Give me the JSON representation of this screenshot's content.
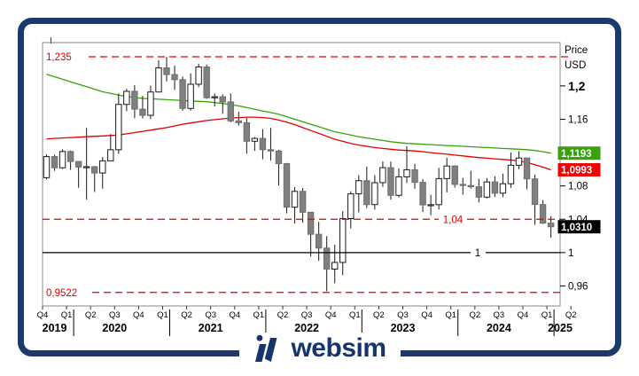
{
  "brand": {
    "name": "websim",
    "color": "#16356e"
  },
  "axis_y": {
    "title_line1": "Price",
    "title_line2": "USD",
    "ticks": [
      {
        "label": "1,2",
        "value": 1.2,
        "bold": true
      },
      {
        "label": "1,16",
        "value": 1.16,
        "bold": false
      },
      {
        "label": "1,08",
        "value": 1.08,
        "bold": false
      },
      {
        "label": "1,04",
        "value": 1.04,
        "bold": false
      },
      {
        "label": "1",
        "value": 1.0,
        "bold": false
      },
      {
        "label": "0,96",
        "value": 0.96,
        "bold": false
      }
    ],
    "badges": [
      {
        "label": "1,1193",
        "value": 1.1193,
        "bg": "#3aa10b",
        "fg": "#ffffff"
      },
      {
        "label": "1,0993",
        "value": 1.0993,
        "bg": "#f00000",
        "fg": "#ffffff"
      },
      {
        "label": "1,0310",
        "value": 1.031,
        "bg": "#000000",
        "fg": "#ffffff"
      }
    ]
  },
  "axis_x": {
    "quarters": [
      "Q4",
      "Q1",
      "Q2",
      "Q3",
      "Q4",
      "Q1",
      "Q2",
      "Q3",
      "Q4",
      "Q1",
      "Q2",
      "Q3",
      "Q4",
      "Q1",
      "Q2",
      "Q3",
      "Q4",
      "Q1",
      "Q2",
      "Q3",
      "Q4",
      "Q1",
      "Q2"
    ],
    "years": [
      {
        "label": "2019",
        "quarters": 1
      },
      {
        "label": "2020",
        "quarters": 4
      },
      {
        "label": "2021",
        "quarters": 4
      },
      {
        "label": "2022",
        "quarters": 4
      },
      {
        "label": "2023",
        "quarters": 4
      },
      {
        "label": "2024",
        "quarters": 4
      },
      {
        "label": "2025",
        "quarters": 2
      }
    ]
  },
  "levels": [
    {
      "label": "1,235",
      "value": 1.235,
      "style": "dashed",
      "color": "#e10000",
      "placement": "left"
    },
    {
      "label": "1,04",
      "value": 1.04,
      "style": "dashed",
      "color": "#e10000",
      "placement": "inline"
    },
    {
      "label": "1",
      "value": 1.0,
      "style": "solid",
      "color": "#000000",
      "placement": "inline"
    },
    {
      "label": "0,9522",
      "value": 0.9522,
      "style": "dashed",
      "color": "#e10000",
      "placement": "left"
    }
  ],
  "chart_data": {
    "type": "candlestick",
    "instrument_axis_title": "Price USD",
    "interval": "monthly",
    "start": "2019-10",
    "end": "2025-01",
    "ylim": [
      0.936,
      1.252
    ],
    "up_color": "#ffffff",
    "down_color": "#808080",
    "candles_ohlc": [
      [
        1.0899,
        1.1179,
        1.0879,
        1.1152
      ],
      [
        1.1152,
        1.1175,
        1.0981,
        1.1018
      ],
      [
        1.1018,
        1.1239,
        1.1003,
        1.1213
      ],
      [
        1.1213,
        1.1225,
        1.0992,
        1.1093
      ],
      [
        1.1093,
        1.1096,
        1.0778,
        1.1026
      ],
      [
        1.1026,
        1.1495,
        1.0636,
        1.1031
      ],
      [
        1.1031,
        1.1039,
        1.0727,
        1.0955
      ],
      [
        1.0955,
        1.1145,
        1.0767,
        1.1101
      ],
      [
        1.1101,
        1.1422,
        1.1101,
        1.1234
      ],
      [
        1.1234,
        1.1909,
        1.1185,
        1.1778
      ],
      [
        1.1778,
        1.1966,
        1.1696,
        1.1935
      ],
      [
        1.1935,
        1.2011,
        1.1612,
        1.1721
      ],
      [
        1.1721,
        1.1881,
        1.1612,
        1.1647
      ],
      [
        1.1647,
        1.2003,
        1.1603,
        1.1927
      ],
      [
        1.1927,
        1.231,
        1.1923,
        1.2216
      ],
      [
        1.2216,
        1.2349,
        1.2054,
        1.2136
      ],
      [
        1.2136,
        1.2243,
        1.1952,
        1.2075
      ],
      [
        1.2075,
        1.2113,
        1.1704,
        1.173
      ],
      [
        1.173,
        1.215,
        1.1704,
        1.202
      ],
      [
        1.202,
        1.2266,
        1.1986,
        1.2227
      ],
      [
        1.2227,
        1.2254,
        1.1845,
        1.1858
      ],
      [
        1.1858,
        1.1909,
        1.1752,
        1.187
      ],
      [
        1.187,
        1.1899,
        1.1664,
        1.1808
      ],
      [
        1.1808,
        1.1909,
        1.1563,
        1.158
      ],
      [
        1.158,
        1.1692,
        1.1524,
        1.1558
      ],
      [
        1.1558,
        1.1616,
        1.1186,
        1.1336
      ],
      [
        1.1336,
        1.1387,
        1.1221,
        1.137
      ],
      [
        1.137,
        1.1483,
        1.1121,
        1.1235
      ],
      [
        1.1235,
        1.1495,
        1.1106,
        1.1219
      ],
      [
        1.1219,
        1.1233,
        1.0806,
        1.1067
      ],
      [
        1.1067,
        1.1076,
        1.0471,
        1.0545
      ],
      [
        1.0545,
        1.0787,
        1.0349,
        1.0735
      ],
      [
        1.0735,
        1.0774,
        1.0359,
        1.0484
      ],
      [
        1.0484,
        1.0487,
        0.9952,
        1.022
      ],
      [
        1.022,
        1.0369,
        0.9901,
        1.0054
      ],
      [
        1.0054,
        1.0198,
        0.9536,
        0.9802
      ],
      [
        0.9802,
        1.0094,
        0.9632,
        0.9882
      ],
      [
        0.9882,
        1.0497,
        0.973,
        1.0408
      ],
      [
        1.0408,
        1.0736,
        1.029,
        1.0705
      ],
      [
        1.0705,
        1.093,
        1.0483,
        1.0863
      ],
      [
        1.0863,
        1.1033,
        1.0533,
        1.0576
      ],
      [
        1.0576,
        1.093,
        1.0516,
        1.0839
      ],
      [
        1.0839,
        1.1095,
        1.0788,
        1.1019
      ],
      [
        1.1019,
        1.1092,
        1.0635,
        1.0687
      ],
      [
        1.0687,
        1.1012,
        1.0662,
        1.0909
      ],
      [
        1.0909,
        1.1276,
        1.0834,
        1.0994
      ],
      [
        1.0994,
        1.1065,
        1.0766,
        1.0843
      ],
      [
        1.0843,
        1.0882,
        1.0488,
        1.0573
      ],
      [
        1.0573,
        1.0694,
        1.0448,
        1.0575
      ],
      [
        1.0575,
        1.1017,
        1.0517,
        1.0888
      ],
      [
        1.0888,
        1.1139,
        1.0723,
        1.1039
      ],
      [
        1.1039,
        1.1046,
        1.078,
        1.0818
      ],
      [
        1.0818,
        1.0898,
        1.0694,
        1.0805
      ],
      [
        1.0805,
        1.0981,
        1.0768,
        1.079
      ],
      [
        1.079,
        1.0885,
        1.0601,
        1.0666
      ],
      [
        1.0666,
        1.0895,
        1.0649,
        1.0848
      ],
      [
        1.0848,
        1.0916,
        1.0667,
        1.0713
      ],
      [
        1.0713,
        1.0948,
        1.0666,
        1.0826
      ],
      [
        1.0826,
        1.1201,
        1.0777,
        1.1048
      ],
      [
        1.1048,
        1.1214,
        1.1002,
        1.1135
      ],
      [
        1.1135,
        1.1139,
        1.0761,
        1.0884
      ],
      [
        1.0884,
        1.0937,
        1.0333,
        1.0577
      ],
      [
        1.0577,
        1.063,
        1.0344,
        1.0354
      ],
      [
        1.0354,
        1.0436,
        1.0178,
        1.031
      ]
    ],
    "series": [
      {
        "name": "ma-green",
        "color": "#3aa10b",
        "last_value": 1.1193,
        "values": [
          1.214,
          1.211,
          1.208,
          1.205,
          1.202,
          1.199,
          1.196,
          1.193,
          1.191,
          1.189,
          1.1875,
          1.186,
          1.185,
          1.1845,
          1.184,
          1.1835,
          1.183,
          1.1825,
          1.182,
          1.1815,
          1.181,
          1.18,
          1.179,
          1.1775,
          1.176,
          1.174,
          1.172,
          1.17,
          1.168,
          1.166,
          1.163,
          1.16,
          1.157,
          1.154,
          1.151,
          1.148,
          1.145,
          1.143,
          1.141,
          1.139,
          1.1375,
          1.136,
          1.1345,
          1.133,
          1.132,
          1.131,
          1.1305,
          1.13,
          1.1295,
          1.129,
          1.1285,
          1.128,
          1.1275,
          1.127,
          1.1265,
          1.126,
          1.1255,
          1.125,
          1.1245,
          1.124,
          1.1235,
          1.1225,
          1.121,
          1.1193
        ]
      },
      {
        "name": "ma-red",
        "color": "#e10000",
        "last_value": 1.0993,
        "values": [
          1.1365,
          1.137,
          1.1375,
          1.138,
          1.1385,
          1.139,
          1.1395,
          1.14,
          1.1405,
          1.141,
          1.1425,
          1.144,
          1.1455,
          1.147,
          1.1485,
          1.15,
          1.152,
          1.154,
          1.1555,
          1.157,
          1.1585,
          1.1595,
          1.1605,
          1.1615,
          1.162,
          1.1625,
          1.1625,
          1.162,
          1.161,
          1.159,
          1.1565,
          1.1535,
          1.15,
          1.1465,
          1.143,
          1.1395,
          1.136,
          1.1335,
          1.131,
          1.129,
          1.1275,
          1.126,
          1.125,
          1.124,
          1.123,
          1.1225,
          1.122,
          1.121,
          1.12,
          1.119,
          1.118,
          1.117,
          1.116,
          1.115,
          1.114,
          1.1133,
          1.1125,
          1.1118,
          1.111,
          1.11,
          1.108,
          1.1055,
          1.1025,
          1.0993
        ]
      }
    ]
  }
}
